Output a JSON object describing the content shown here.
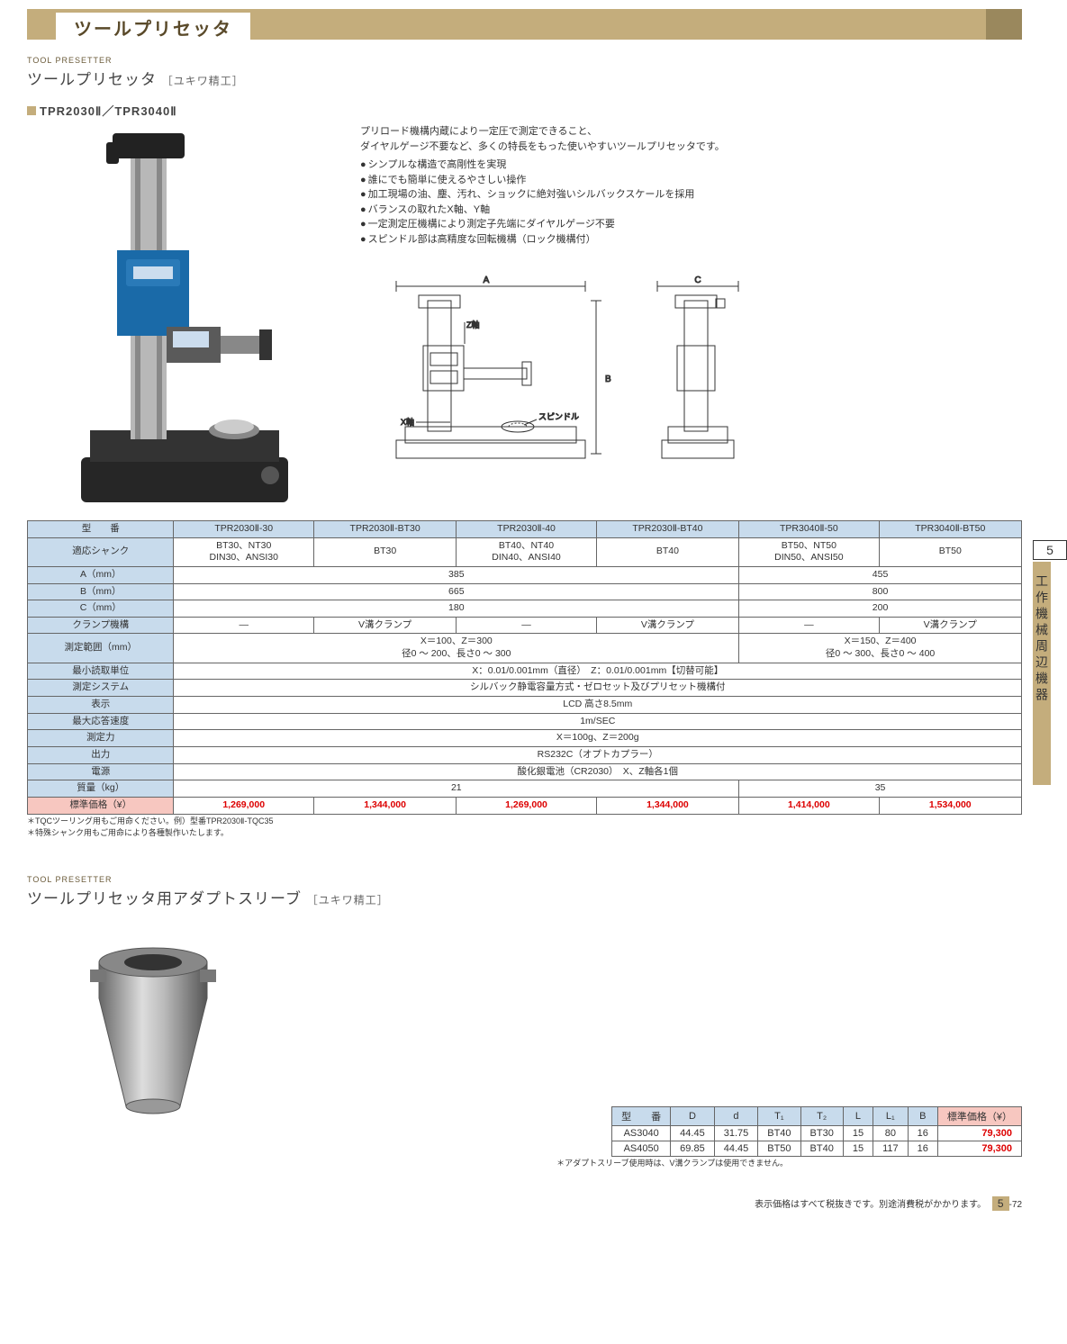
{
  "header": {
    "category_title": "ツールプリセッタ"
  },
  "side_tab": {
    "number": "5",
    "label": "工作機械周辺機器"
  },
  "section1": {
    "eyebrow": "TOOL PRESETTER",
    "title": "ツールプリセッタ",
    "maker": "［ユキワ精工］",
    "model_line": "TPR2030Ⅱ／TPR3040Ⅱ",
    "description_line1": "プリロード機構内蔵により一定圧で測定できること、",
    "description_line2": "ダイヤルゲージ不要など、多くの特長をもった使いやすいツールプリセッタです。",
    "bullets": [
      "シンプルな構造で高剛性を実現",
      "誰にでも簡単に使えるやさしい操作",
      "加工現場の油、塵、汚れ、ショックに絶対強いシルバックスケールを採用",
      "バランスの取れたX軸、Y軸",
      "一定測定圧機構により測定子先端にダイヤルゲージ不要",
      "スピンドル部は高精度な回転機構（ロック機構付）"
    ],
    "diagram_labels": {
      "a": "A",
      "b": "B",
      "c": "C",
      "x": "X軸",
      "z": "Z軸",
      "spindle": "スピンドル"
    }
  },
  "table1": {
    "header_label": "型　　番",
    "cols": [
      "TPR2030Ⅱ-30",
      "TPR2030Ⅱ-BT30",
      "TPR2030Ⅱ-40",
      "TPR2030Ⅱ-BT40",
      "TPR3040Ⅱ-50",
      "TPR3040Ⅱ-BT50"
    ],
    "rows": {
      "shank": {
        "label": "適応シャンク",
        "cells": [
          "BT30、NT30\nDIN30、ANSI30",
          "BT30",
          "BT40、NT40\nDIN40、ANSI40",
          "BT40",
          "BT50、NT50\nDIN50、ANSI50",
          "BT50"
        ]
      },
      "a": {
        "label": "A（mm）",
        "cells": [
          {
            "span": 4,
            "v": "385"
          },
          {
            "span": 2,
            "v": "455"
          }
        ]
      },
      "b": {
        "label": "B（mm）",
        "cells": [
          {
            "span": 4,
            "v": "665"
          },
          {
            "span": 2,
            "v": "800"
          }
        ]
      },
      "c": {
        "label": "C（mm）",
        "cells": [
          {
            "span": 4,
            "v": "180"
          },
          {
            "span": 2,
            "v": "200"
          }
        ]
      },
      "clamp": {
        "label": "クランプ機構",
        "cells": [
          "—",
          "V溝クランプ",
          "—",
          "V溝クランプ",
          "—",
          "V溝クランプ"
        ]
      },
      "range": {
        "label": "測定範囲（mm）",
        "cells": [
          {
            "span": 4,
            "v": "X＝100、Z＝300\n径0 〜 200、長さ0 〜 300"
          },
          {
            "span": 2,
            "v": "X＝150、Z＝400\n径0 〜 300、長さ0 〜 400"
          }
        ]
      },
      "unit": {
        "label": "最小読取単位",
        "cells": [
          {
            "span": 6,
            "v": "X：0.01/0.001mm（直径）　Z：0.01/0.001mm【切替可能】"
          }
        ]
      },
      "system": {
        "label": "測定システム",
        "cells": [
          {
            "span": 6,
            "v": "シルバック静電容量方式・ゼロセット及びプリセット機構付"
          }
        ]
      },
      "display": {
        "label": "表示",
        "cells": [
          {
            "span": 6,
            "v": "LCD 高さ8.5mm"
          }
        ]
      },
      "speed": {
        "label": "最大応答速度",
        "cells": [
          {
            "span": 6,
            "v": "1m/SEC"
          }
        ]
      },
      "force": {
        "label": "測定力",
        "cells": [
          {
            "span": 6,
            "v": "X＝100g、Z＝200g"
          }
        ]
      },
      "output": {
        "label": "出力",
        "cells": [
          {
            "span": 6,
            "v": "RS232C（オプトカプラー）"
          }
        ]
      },
      "power": {
        "label": "電源",
        "cells": [
          {
            "span": 6,
            "v": "酸化銀電池（CR2030）　X、Z軸各1個"
          }
        ]
      },
      "mass": {
        "label": "質量（kg）",
        "cells": [
          {
            "span": 4,
            "v": "21"
          },
          {
            "span": 2,
            "v": "35"
          }
        ]
      },
      "price": {
        "label": "標準価格（¥）",
        "cells": [
          "1,269,000",
          "1,344,000",
          "1,269,000",
          "1,344,000",
          "1,414,000",
          "1,534,000"
        ]
      }
    },
    "footnotes": [
      "＊TQCツーリング用もご用命ください。例）型番TPR2030Ⅱ-TQC35",
      "＊特殊シャンク用もご用命により各種製作いたします。"
    ]
  },
  "section2": {
    "eyebrow": "TOOL PRESETTER",
    "title": "ツールプリセッタ用アダプトスリーブ",
    "maker": "［ユキワ精工］"
  },
  "table2": {
    "headers": [
      "型　　番",
      "D",
      "d",
      "T₁",
      "T₂",
      "L",
      "L₁",
      "B",
      "標準価格（¥）"
    ],
    "rows": [
      [
        "AS3040",
        "44.45",
        "31.75",
        "BT40",
        "BT30",
        "15",
        "80",
        "16",
        "79,300"
      ],
      [
        "AS4050",
        "69.85",
        "44.45",
        "BT50",
        "BT40",
        "15",
        "117",
        "16",
        "79,300"
      ]
    ],
    "footnote": "＊アダプトスリーブ使用時は、V溝クランプは使用できません。"
  },
  "footer": {
    "tax_note": "表示価格はすべて税抜きです。別途消費税がかかります。",
    "page_section": "5",
    "page_number": "-72"
  },
  "colors": {
    "band": "#c4ad7c",
    "blue_cell": "#c8dbec",
    "pink_cell": "#f7c7c0",
    "price_text": "#d00"
  }
}
